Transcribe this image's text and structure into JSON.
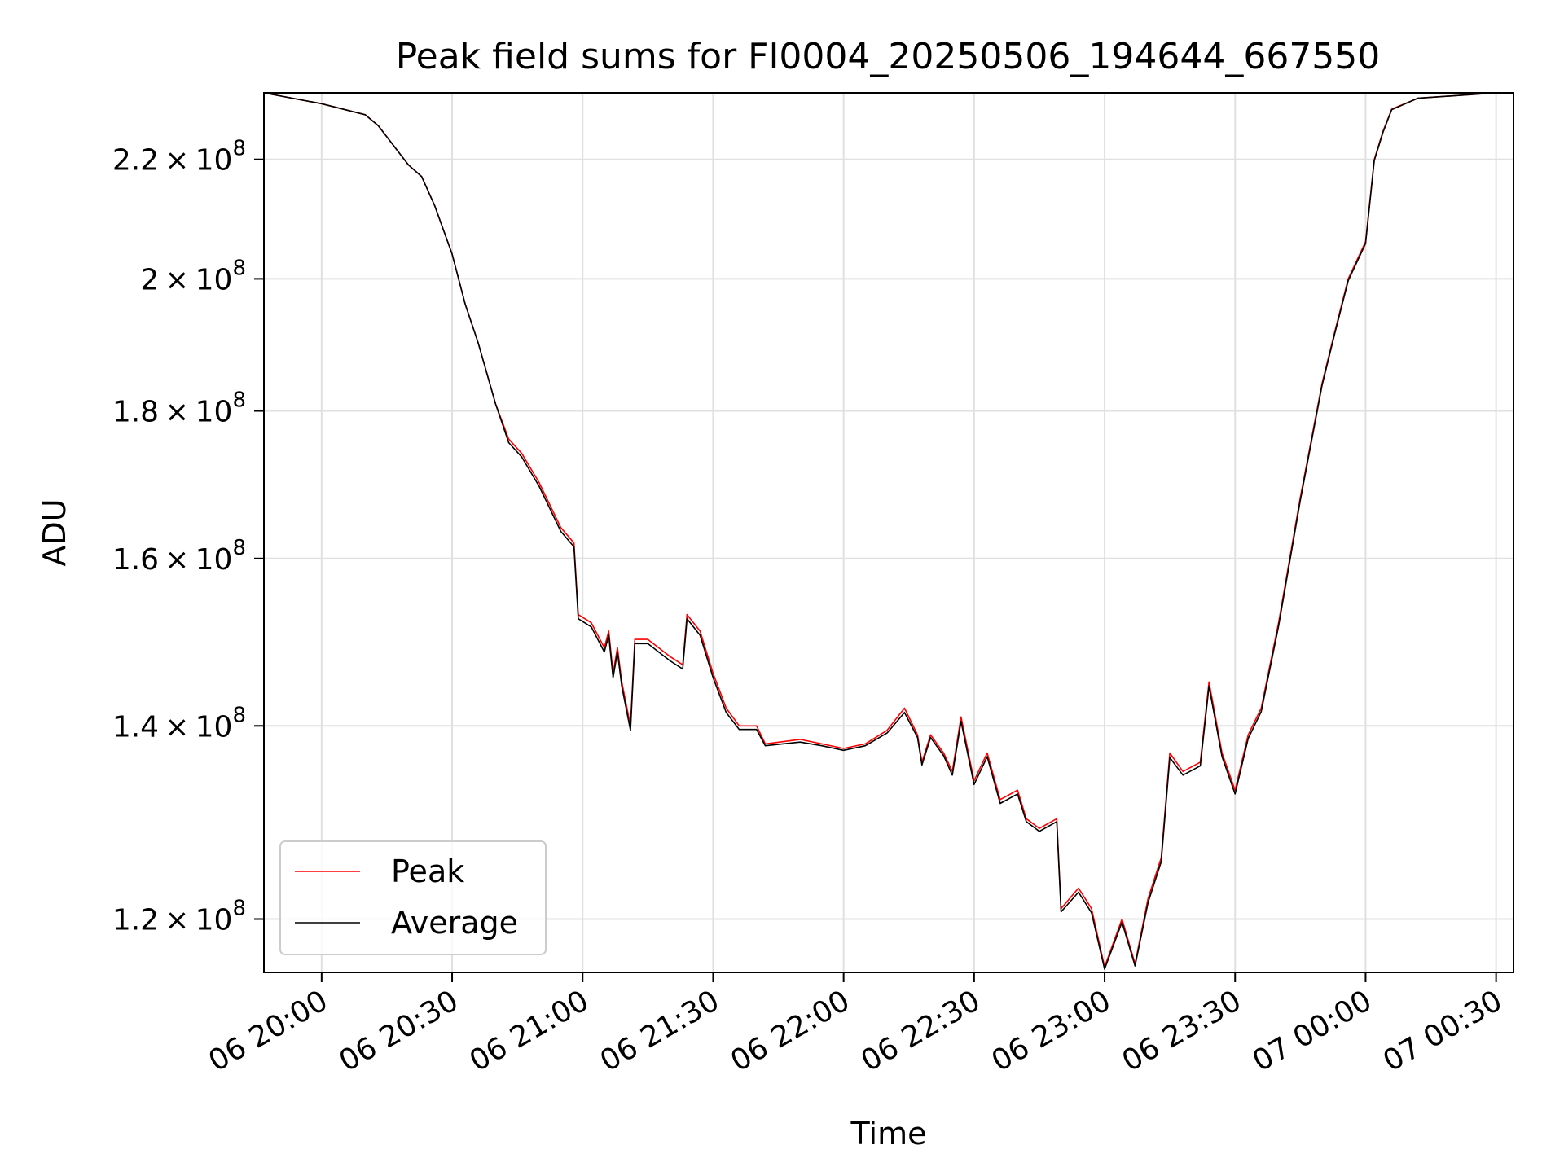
{
  "chart_data": {
    "type": "line",
    "title": "Peak field sums for FI0004_20250506_194644_667550",
    "xlabel": "Time",
    "ylabel": "ADU",
    "x_axis": {
      "kind": "time",
      "range": [
        "2025-05-06 19:46:44",
        "2025-05-07 00:34:00"
      ],
      "ticks": [
        {
          "t": "2025-05-06 20:00",
          "label": "06 20:00"
        },
        {
          "t": "2025-05-06 20:30",
          "label": "06 20:30"
        },
        {
          "t": "2025-05-06 21:00",
          "label": "06 21:00"
        },
        {
          "t": "2025-05-06 21:30",
          "label": "06 21:30"
        },
        {
          "t": "2025-05-06 22:00",
          "label": "06 22:00"
        },
        {
          "t": "2025-05-06 22:30",
          "label": "06 22:30"
        },
        {
          "t": "2025-05-06 23:00",
          "label": "06 23:00"
        },
        {
          "t": "2025-05-06 23:30",
          "label": "06 23:30"
        },
        {
          "t": "2025-05-07 00:00",
          "label": "07 00:00"
        },
        {
          "t": "2025-05-07 00:30",
          "label": "07 00:30"
        }
      ]
    },
    "y_axis": {
      "scale": "log",
      "range": [
        115000000,
        232000000
      ],
      "ticks": [
        {
          "value": 120000000,
          "mantissa": "1.2",
          "exponent": "8"
        },
        {
          "value": 140000000,
          "mantissa": "1.4",
          "exponent": "8"
        },
        {
          "value": 160000000,
          "mantissa": "1.6",
          "exponent": "8"
        },
        {
          "value": 180000000,
          "mantissa": "1.8",
          "exponent": "8"
        },
        {
          "value": 200000000,
          "mantissa": "2",
          "exponent": "8"
        },
        {
          "value": 220000000,
          "mantissa": "2.2",
          "exponent": "8"
        }
      ]
    },
    "grid": true,
    "legend": {
      "position": "lower-left"
    },
    "series": [
      {
        "name": "Peak",
        "color": "#ff0000",
        "points": [
          [
            "2025-05-06 19:46:44",
            232000000
          ],
          [
            "2025-05-06 20:00",
            230000000
          ],
          [
            "2025-05-06 20:10",
            228000000
          ],
          [
            "2025-05-06 20:13",
            226000000
          ],
          [
            "2025-05-06 20:20",
            219000000
          ],
          [
            "2025-05-06 20:23",
            217000000
          ],
          [
            "2025-05-06 20:26",
            212000000
          ],
          [
            "2025-05-06 20:30",
            204000000
          ],
          [
            "2025-05-06 20:33",
            196000000
          ],
          [
            "2025-05-06 20:36",
            190000000
          ],
          [
            "2025-05-06 20:40",
            181000000
          ],
          [
            "2025-05-06 20:43",
            176000000
          ],
          [
            "2025-05-06 20:46",
            174000000
          ],
          [
            "2025-05-06 20:50",
            170000000
          ],
          [
            "2025-05-06 20:55",
            164000000
          ],
          [
            "2025-05-06 20:58",
            162000000
          ],
          [
            "2025-05-06 20:59",
            153000000
          ],
          [
            "2025-05-06 21:02",
            152000000
          ],
          [
            "2025-05-06 21:05",
            149000000
          ],
          [
            "2025-05-06 21:06",
            151000000
          ],
          [
            "2025-05-06 21:07",
            146000000
          ],
          [
            "2025-05-06 21:08",
            149000000
          ],
          [
            "2025-05-06 21:09",
            145000000
          ],
          [
            "2025-05-06 21:11",
            140000000
          ],
          [
            "2025-05-06 21:12",
            150000000
          ],
          [
            "2025-05-06 21:15",
            150000000
          ],
          [
            "2025-05-06 21:20",
            148000000
          ],
          [
            "2025-05-06 21:23",
            147000000
          ],
          [
            "2025-05-06 21:24",
            153000000
          ],
          [
            "2025-05-06 21:27",
            151000000
          ],
          [
            "2025-05-06 21:30",
            146000000
          ],
          [
            "2025-05-06 21:33",
            142000000
          ],
          [
            "2025-05-06 21:36",
            140000000
          ],
          [
            "2025-05-06 21:40",
            140000000
          ],
          [
            "2025-05-06 21:42",
            138000000
          ],
          [
            "2025-05-06 21:50",
            138500000
          ],
          [
            "2025-05-06 21:55",
            138000000
          ],
          [
            "2025-05-06 22:00",
            137500000
          ],
          [
            "2025-05-06 22:05",
            138000000
          ],
          [
            "2025-05-06 22:10",
            139500000
          ],
          [
            "2025-05-06 22:14",
            142000000
          ],
          [
            "2025-05-06 22:17",
            139000000
          ],
          [
            "2025-05-06 22:18",
            136000000
          ],
          [
            "2025-05-06 22:20",
            139000000
          ],
          [
            "2025-05-06 22:23",
            137000000
          ],
          [
            "2025-05-06 22:25",
            135000000
          ],
          [
            "2025-05-06 22:27",
            141000000
          ],
          [
            "2025-05-06 22:30",
            134000000
          ],
          [
            "2025-05-06 22:33",
            137000000
          ],
          [
            "2025-05-06 22:36",
            132000000
          ],
          [
            "2025-05-06 22:40",
            133000000
          ],
          [
            "2025-05-06 22:42",
            130000000
          ],
          [
            "2025-05-06 22:45",
            129000000
          ],
          [
            "2025-05-06 22:49",
            130000000
          ],
          [
            "2025-05-06 22:50",
            121000000
          ],
          [
            "2025-05-06 22:54",
            123000000
          ],
          [
            "2025-05-06 22:57",
            121000000
          ],
          [
            "2025-05-06 23:00",
            115500000
          ],
          [
            "2025-05-06 23:04",
            120000000
          ],
          [
            "2025-05-06 23:07",
            115800000
          ],
          [
            "2025-05-06 23:10",
            122000000
          ],
          [
            "2025-05-06 23:13",
            126000000
          ],
          [
            "2025-05-06 23:15",
            137000000
          ],
          [
            "2025-05-06 23:18",
            135000000
          ],
          [
            "2025-05-06 23:22",
            136000000
          ],
          [
            "2025-05-06 23:24",
            145000000
          ],
          [
            "2025-05-06 23:27",
            137000000
          ],
          [
            "2025-05-06 23:30",
            133000000
          ],
          [
            "2025-05-06 23:33",
            139000000
          ],
          [
            "2025-05-06 23:36",
            142000000
          ],
          [
            "2025-05-06 23:40",
            152000000
          ],
          [
            "2025-05-06 23:45",
            168000000
          ],
          [
            "2025-05-06 23:50",
            184000000
          ],
          [
            "2025-05-06 23:53",
            192000000
          ],
          [
            "2025-05-06 23:56",
            200000000
          ],
          [
            "2025-05-07 00:00",
            206000000
          ],
          [
            "2025-05-07 00:02",
            220000000
          ],
          [
            "2025-05-07 00:04",
            225000000
          ],
          [
            "2025-05-07 00:06",
            229000000
          ],
          [
            "2025-05-07 00:12",
            231000000
          ],
          [
            "2025-05-07 00:30",
            232000000
          ],
          [
            "2025-05-07 00:34",
            232000000
          ]
        ]
      },
      {
        "name": "Average",
        "color": "#000000",
        "points": [
          [
            "2025-05-06 19:46:44",
            232000000
          ],
          [
            "2025-05-06 20:00",
            230000000
          ],
          [
            "2025-05-06 20:10",
            228000000
          ],
          [
            "2025-05-06 20:13",
            226000000
          ],
          [
            "2025-05-06 20:20",
            219000000
          ],
          [
            "2025-05-06 20:23",
            217000000
          ],
          [
            "2025-05-06 20:26",
            212000000
          ],
          [
            "2025-05-06 20:30",
            204000000
          ],
          [
            "2025-05-06 20:33",
            196000000
          ],
          [
            "2025-05-06 20:36",
            190000000
          ],
          [
            "2025-05-06 20:40",
            181000000
          ],
          [
            "2025-05-06 20:43",
            175500000
          ],
          [
            "2025-05-06 20:46",
            173500000
          ],
          [
            "2025-05-06 20:50",
            169500000
          ],
          [
            "2025-05-06 20:55",
            163500000
          ],
          [
            "2025-05-06 20:58",
            161500000
          ],
          [
            "2025-05-06 20:59",
            152500000
          ],
          [
            "2025-05-06 21:02",
            151500000
          ],
          [
            "2025-05-06 21:05",
            148500000
          ],
          [
            "2025-05-06 21:06",
            150500000
          ],
          [
            "2025-05-06 21:07",
            145500000
          ],
          [
            "2025-05-06 21:08",
            148500000
          ],
          [
            "2025-05-06 21:09",
            144500000
          ],
          [
            "2025-05-06 21:11",
            139500000
          ],
          [
            "2025-05-06 21:12",
            149500000
          ],
          [
            "2025-05-06 21:15",
            149500000
          ],
          [
            "2025-05-06 21:20",
            147500000
          ],
          [
            "2025-05-06 21:23",
            146500000
          ],
          [
            "2025-05-06 21:24",
            152500000
          ],
          [
            "2025-05-06 21:27",
            150500000
          ],
          [
            "2025-05-06 21:30",
            145500000
          ],
          [
            "2025-05-06 21:33",
            141500000
          ],
          [
            "2025-05-06 21:36",
            139600000
          ],
          [
            "2025-05-06 21:40",
            139600000
          ],
          [
            "2025-05-06 21:42",
            137800000
          ],
          [
            "2025-05-06 21:50",
            138200000
          ],
          [
            "2025-05-06 21:55",
            137800000
          ],
          [
            "2025-05-06 22:00",
            137300000
          ],
          [
            "2025-05-06 22:05",
            137800000
          ],
          [
            "2025-05-06 22:10",
            139200000
          ],
          [
            "2025-05-06 22:14",
            141500000
          ],
          [
            "2025-05-06 22:17",
            138700000
          ],
          [
            "2025-05-06 22:18",
            135700000
          ],
          [
            "2025-05-06 22:20",
            138700000
          ],
          [
            "2025-05-06 22:23",
            136700000
          ],
          [
            "2025-05-06 22:25",
            134600000
          ],
          [
            "2025-05-06 22:27",
            140500000
          ],
          [
            "2025-05-06 22:30",
            133600000
          ],
          [
            "2025-05-06 22:33",
            136600000
          ],
          [
            "2025-05-06 22:36",
            131600000
          ],
          [
            "2025-05-06 22:40",
            132600000
          ],
          [
            "2025-05-06 22:42",
            129700000
          ],
          [
            "2025-05-06 22:45",
            128700000
          ],
          [
            "2025-05-06 22:49",
            129700000
          ],
          [
            "2025-05-06 22:50",
            120700000
          ],
          [
            "2025-05-06 22:54",
            122600000
          ],
          [
            "2025-05-06 22:57",
            120600000
          ],
          [
            "2025-05-06 23:00",
            115300000
          ],
          [
            "2025-05-06 23:04",
            119700000
          ],
          [
            "2025-05-06 23:07",
            115600000
          ],
          [
            "2025-05-06 23:10",
            121600000
          ],
          [
            "2025-05-06 23:13",
            125600000
          ],
          [
            "2025-05-06 23:15",
            136500000
          ],
          [
            "2025-05-06 23:18",
            134600000
          ],
          [
            "2025-05-06 23:22",
            135600000
          ],
          [
            "2025-05-06 23:24",
            144500000
          ],
          [
            "2025-05-06 23:27",
            136600000
          ],
          [
            "2025-05-06 23:30",
            132600000
          ],
          [
            "2025-05-06 23:33",
            138600000
          ],
          [
            "2025-05-06 23:36",
            141600000
          ],
          [
            "2025-05-06 23:40",
            151600000
          ],
          [
            "2025-05-06 23:45",
            167600000
          ],
          [
            "2025-05-06 23:50",
            183700000
          ],
          [
            "2025-05-06 23:53",
            191700000
          ],
          [
            "2025-05-06 23:56",
            199700000
          ],
          [
            "2025-05-07 00:00",
            205700000
          ],
          [
            "2025-05-07 00:02",
            219800000
          ],
          [
            "2025-05-07 00:04",
            224800000
          ],
          [
            "2025-05-07 00:06",
            228900000
          ],
          [
            "2025-05-07 00:12",
            231000000
          ],
          [
            "2025-05-07 00:30",
            232000000
          ],
          [
            "2025-05-07 00:34",
            232000000
          ]
        ]
      }
    ]
  },
  "colors": {
    "grid": "#e0e0e0",
    "axes": "#000000",
    "legend_border": "#cccccc"
  }
}
